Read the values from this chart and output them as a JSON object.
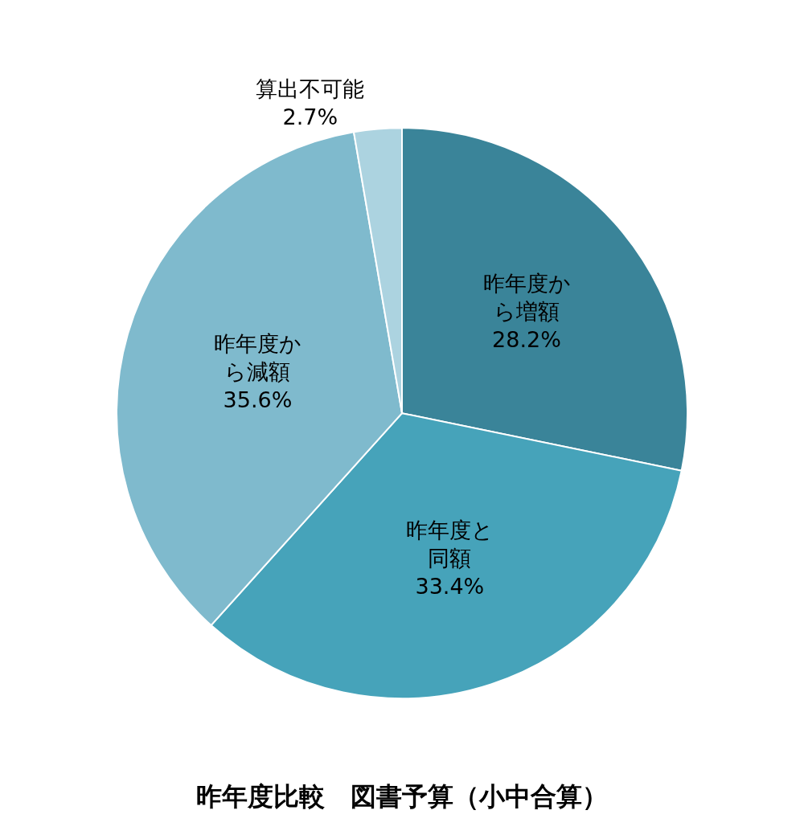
{
  "chart_data": {
    "type": "pie",
    "title": "昨年度比較　図書予算（小中合算）",
    "categories": [
      "昨年度から増額",
      "昨年度と同額",
      "昨年度から減額",
      "算出不可能"
    ],
    "values": [
      28.2,
      33.4,
      35.6,
      2.7
    ],
    "value_labels": [
      "28.2%",
      "33.4%",
      "35.6%",
      "2.7%"
    ],
    "colors": [
      "#3a8499",
      "#46a3ba",
      "#7fbacd",
      "#acd3e0"
    ],
    "data_labels": true,
    "legend": false
  }
}
